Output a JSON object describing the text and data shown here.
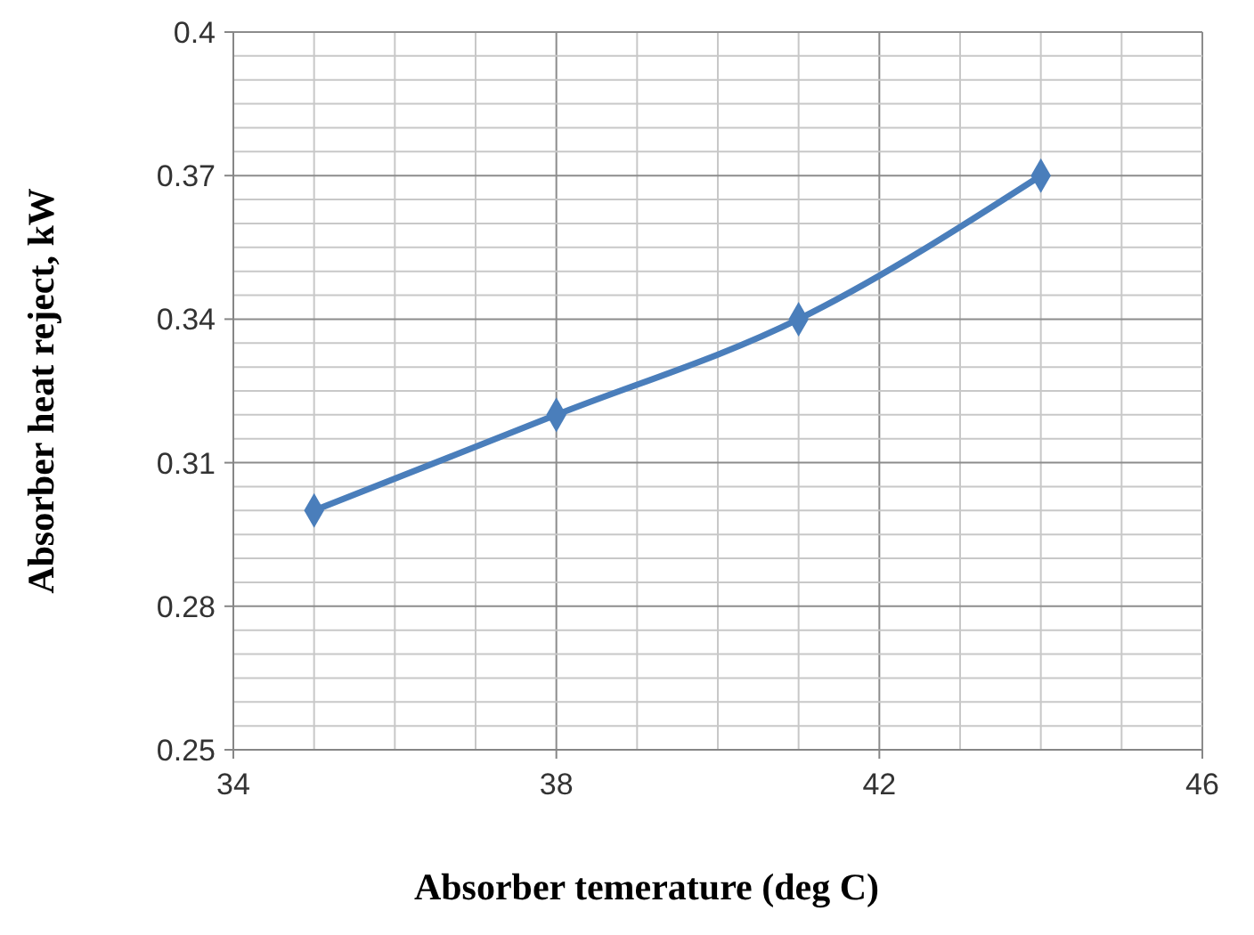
{
  "chart_data": {
    "type": "line",
    "xlabel": "Absorber  temerature (deg C)",
    "ylabel": "Absorber heat reject, kW",
    "x": [
      35,
      38,
      41,
      44
    ],
    "series": [
      {
        "color": "#4a7ebb",
        "values": [
          0.3,
          0.32,
          0.34,
          0.37
        ]
      }
    ],
    "xlim": [
      34,
      46
    ],
    "xticks": [
      34,
      {
        "value": 35,
        "label": null
      },
      {
        "value": 36,
        "label": null
      },
      {
        "value": 37,
        "label": null
      },
      38,
      {
        "value": 39,
        "label": null
      },
      {
        "value": 40,
        "label": null
      },
      {
        "value": 41,
        "label": null
      },
      42,
      {
        "value": 43,
        "label": null
      },
      {
        "value": 44,
        "label": null
      },
      {
        "value": 45,
        "label": null
      },
      46
    ],
    "ylim": [
      0.25,
      0.4
    ],
    "yticks": [
      {
        "value": 0.25,
        "label": "0.25"
      },
      {
        "value": 0.255,
        "label": null
      },
      {
        "value": 0.26,
        "label": null
      },
      {
        "value": 0.265,
        "label": null
      },
      {
        "value": 0.27,
        "label": null
      },
      {
        "value": 0.275,
        "label": null
      },
      {
        "value": 0.28,
        "label": "0.28"
      },
      {
        "value": 0.285,
        "label": null
      },
      {
        "value": 0.29,
        "label": null
      },
      {
        "value": 0.295,
        "label": null
      },
      {
        "value": 0.3,
        "label": null
      },
      {
        "value": 0.305,
        "label": null
      },
      {
        "value": 0.31,
        "label": "0.31"
      },
      {
        "value": 0.315,
        "label": null
      },
      {
        "value": 0.32,
        "label": null
      },
      {
        "value": 0.325,
        "label": null
      },
      {
        "value": 0.33,
        "label": null
      },
      {
        "value": 0.335,
        "label": null
      },
      {
        "value": 0.34,
        "label": "0.34"
      },
      {
        "value": 0.345,
        "label": null
      },
      {
        "value": 0.35,
        "label": null
      },
      {
        "value": 0.355,
        "label": null
      },
      {
        "value": 0.36,
        "label": null
      },
      {
        "value": 0.365,
        "label": null
      },
      {
        "value": 0.37,
        "label": "0.37"
      },
      {
        "value": 0.375,
        "label": null
      },
      {
        "value": 0.38,
        "label": null
      },
      {
        "value": 0.385,
        "label": null
      },
      {
        "value": 0.39,
        "label": null
      },
      {
        "value": 0.395,
        "label": null
      },
      {
        "value": 0.4,
        "label": "0.4"
      }
    ],
    "grid": true,
    "marker": "diamond",
    "line_style": "solid"
  }
}
